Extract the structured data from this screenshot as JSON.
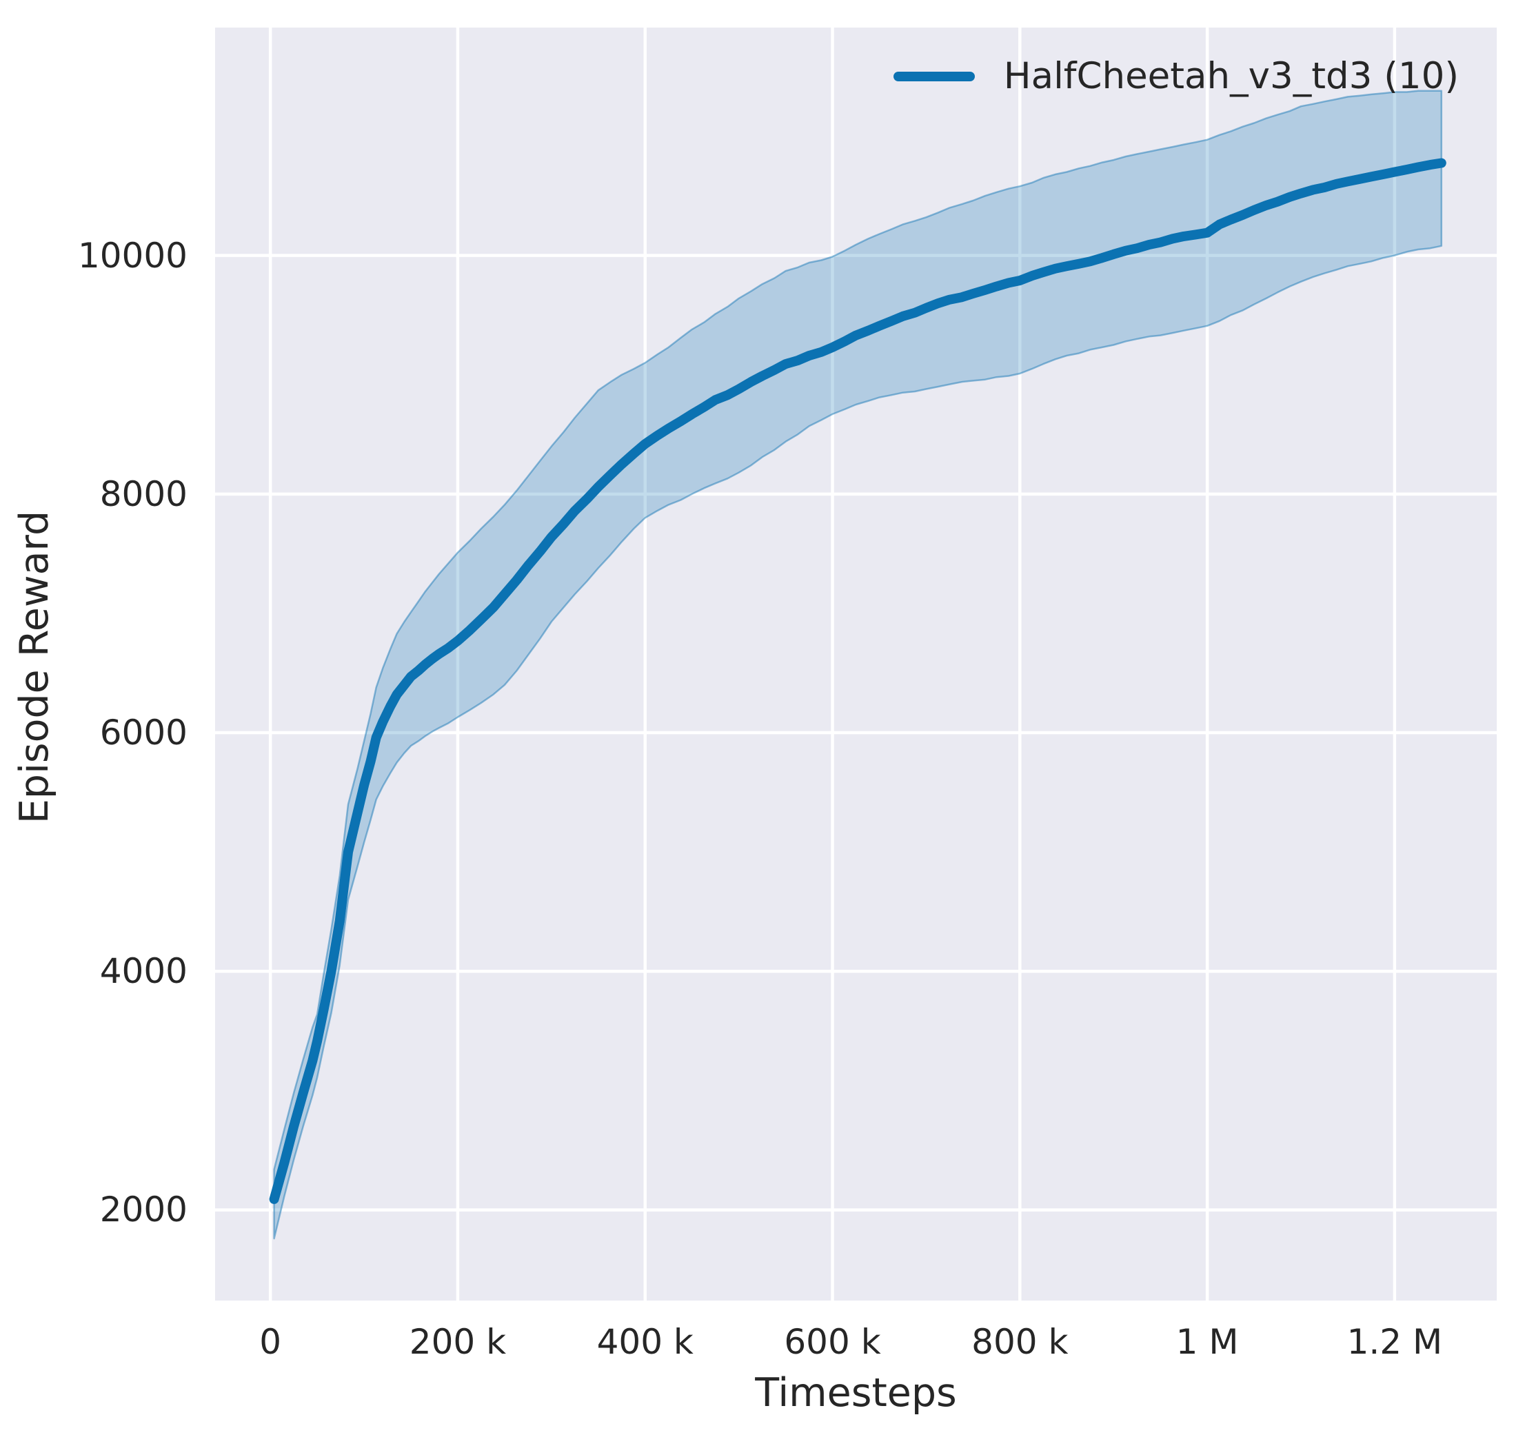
{
  "figure": {
    "background": "#ffffff",
    "axes_background": "#eaeaf2",
    "grid_color": "#ffffff",
    "text_color": "#262626"
  },
  "legend": {
    "position": "upper right",
    "entries": [
      {
        "label": "HalfCheetah_v3_td3 (10)",
        "color": "#0b72b2"
      }
    ]
  },
  "chart_data": {
    "type": "line",
    "title": "",
    "xlabel": "Timesteps",
    "ylabel": "Episode Reward",
    "grid": true,
    "legend_position": "upper right",
    "xlim": [
      -59000,
      1309000
    ],
    "ylim": [
      1240,
      11910
    ],
    "x_ticks": {
      "values": [
        0,
        200000,
        400000,
        600000,
        800000,
        1000000,
        1200000
      ],
      "labels": [
        "0",
        "200 k",
        "400 k",
        "600 k",
        "800 k",
        "1 M",
        "1.2 M"
      ]
    },
    "y_ticks": {
      "values": [
        2000,
        4000,
        6000,
        8000,
        10000
      ],
      "labels": [
        "2000",
        "4000",
        "6000",
        "8000",
        "10000"
      ]
    },
    "series": [
      {
        "name": "HalfCheetah_v3_td3 (10)",
        "color": "#0b72b2",
        "band_fill": "rgba(11,114,178,0.25)",
        "band_edge": "rgba(11,114,178,0.45)",
        "x": [
          4000,
          15000,
          25000,
          35000,
          45000,
          50000,
          57000,
          65000,
          74000,
          83000,
          93000,
          100000,
          107000,
          113000,
          120000,
          128000,
          135000,
          143000,
          150000,
          158000,
          165000,
          173000,
          180000,
          190000,
          200000,
          213000,
          225000,
          238000,
          250000,
          263000,
          275000,
          288000,
          300000,
          313000,
          325000,
          338000,
          350000,
          363000,
          375000,
          388000,
          400000,
          413000,
          425000,
          438000,
          450000,
          463000,
          475000,
          488000,
          500000,
          513000,
          525000,
          538000,
          550000,
          563000,
          575000,
          588000,
          600000,
          613000,
          625000,
          638000,
          650000,
          663000,
          675000,
          688000,
          700000,
          713000,
          725000,
          738000,
          750000,
          763000,
          775000,
          788000,
          800000,
          813000,
          825000,
          838000,
          850000,
          863000,
          875000,
          888000,
          900000,
          913000,
          925000,
          938000,
          950000,
          963000,
          975000,
          988000,
          1000000,
          1013000,
          1025000,
          1038000,
          1050000,
          1063000,
          1075000,
          1088000,
          1100000,
          1113000,
          1125000,
          1138000,
          1150000,
          1163000,
          1175000,
          1188000,
          1200000,
          1213000,
          1225000,
          1238000,
          1250000
        ],
        "mean": [
          2090,
          2400,
          2700,
          2980,
          3250,
          3415,
          3680,
          4000,
          4420,
          5000,
          5330,
          5560,
          5760,
          5960,
          6090,
          6220,
          6320,
          6400,
          6470,
          6520,
          6570,
          6620,
          6660,
          6710,
          6770,
          6860,
          6950,
          7050,
          7160,
          7280,
          7400,
          7520,
          7640,
          7750,
          7860,
          7960,
          8060,
          8160,
          8250,
          8340,
          8420,
          8490,
          8550,
          8610,
          8670,
          8730,
          8790,
          8830,
          8880,
          8940,
          8990,
          9040,
          9090,
          9120,
          9160,
          9190,
          9230,
          9280,
          9330,
          9370,
          9410,
          9450,
          9490,
          9520,
          9560,
          9600,
          9630,
          9650,
          9680,
          9710,
          9740,
          9770,
          9790,
          9830,
          9860,
          9890,
          9910,
          9930,
          9950,
          9980,
          10010,
          10040,
          10060,
          10090,
          10110,
          10140,
          10160,
          10175,
          10190,
          10260,
          10300,
          10340,
          10380,
          10420,
          10450,
          10490,
          10520,
          10550,
          10570,
          10600,
          10620,
          10640,
          10660,
          10680,
          10700,
          10720,
          10740,
          10760,
          10775
        ],
        "band_low": [
          1760,
          2120,
          2420,
          2700,
          2960,
          3110,
          3370,
          3650,
          4050,
          4600,
          4880,
          5080,
          5270,
          5440,
          5550,
          5660,
          5750,
          5830,
          5890,
          5930,
          5970,
          6010,
          6040,
          6080,
          6130,
          6190,
          6250,
          6320,
          6400,
          6520,
          6650,
          6790,
          6930,
          7050,
          7160,
          7270,
          7380,
          7490,
          7600,
          7710,
          7800,
          7860,
          7910,
          7950,
          8000,
          8050,
          8090,
          8130,
          8180,
          8240,
          8310,
          8370,
          8440,
          8500,
          8570,
          8620,
          8670,
          8710,
          8750,
          8780,
          8810,
          8830,
          8850,
          8860,
          8880,
          8900,
          8920,
          8940,
          8950,
          8960,
          8980,
          8990,
          9010,
          9050,
          9090,
          9130,
          9160,
          9180,
          9210,
          9230,
          9250,
          9280,
          9300,
          9320,
          9330,
          9350,
          9370,
          9390,
          9410,
          9450,
          9500,
          9540,
          9590,
          9640,
          9690,
          9740,
          9780,
          9820,
          9850,
          9880,
          9910,
          9930,
          9950,
          9980,
          10000,
          10030,
          10050,
          10060,
          10080
        ],
        "band_high": [
          2340,
          2680,
          2980,
          3260,
          3530,
          3640,
          3980,
          4350,
          4800,
          5400,
          5700,
          5930,
          6160,
          6380,
          6540,
          6700,
          6830,
          6930,
          7010,
          7100,
          7180,
          7260,
          7330,
          7420,
          7510,
          7610,
          7710,
          7810,
          7910,
          8030,
          8150,
          8280,
          8400,
          8520,
          8640,
          8760,
          8870,
          8940,
          9000,
          9050,
          9100,
          9170,
          9230,
          9310,
          9380,
          9440,
          9510,
          9570,
          9640,
          9700,
          9760,
          9810,
          9870,
          9900,
          9940,
          9960,
          9990,
          10040,
          10090,
          10140,
          10180,
          10220,
          10260,
          10290,
          10320,
          10360,
          10400,
          10430,
          10460,
          10500,
          10530,
          10560,
          10580,
          10610,
          10650,
          10680,
          10700,
          10730,
          10750,
          10780,
          10800,
          10830,
          10850,
          10870,
          10890,
          10910,
          10930,
          10950,
          10970,
          11010,
          11040,
          11080,
          11110,
          11150,
          11180,
          11210,
          11250,
          11270,
          11290,
          11310,
          11330,
          11340,
          11350,
          11360,
          11370,
          11370,
          11380,
          11380,
          11380
        ]
      }
    ]
  }
}
